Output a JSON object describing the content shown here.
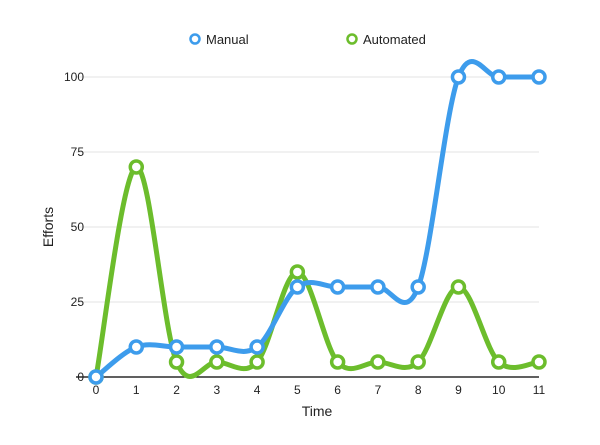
{
  "chart_data": {
    "type": "line",
    "smooth": true,
    "title": "",
    "xlabel": "Time",
    "ylabel": "Efforts",
    "x": [
      0,
      1,
      2,
      3,
      4,
      5,
      6,
      7,
      8,
      9,
      10,
      11
    ],
    "x_tick_labels": [
      "0",
      "1",
      "2",
      "3",
      "4",
      "5",
      "6",
      "7",
      "8",
      "9",
      "10",
      "11"
    ],
    "ylim": [
      0,
      100
    ],
    "y_ticks": [
      0,
      25,
      50,
      75,
      100
    ],
    "y_tick_labels": [
      "0",
      "25",
      "50",
      "75",
      "100"
    ],
    "grid": "horizontal",
    "legend_position": "top",
    "series": [
      {
        "name": "Manual",
        "color": "#3d9cec",
        "values": [
          0,
          10,
          10,
          10,
          10,
          30,
          30,
          30,
          30,
          100,
          100,
          100
        ]
      },
      {
        "name": "Automated",
        "color": "#6cbd2c",
        "values": [
          0,
          70,
          5,
          5,
          5,
          35,
          5,
          5,
          5,
          30,
          5,
          5
        ]
      }
    ]
  }
}
